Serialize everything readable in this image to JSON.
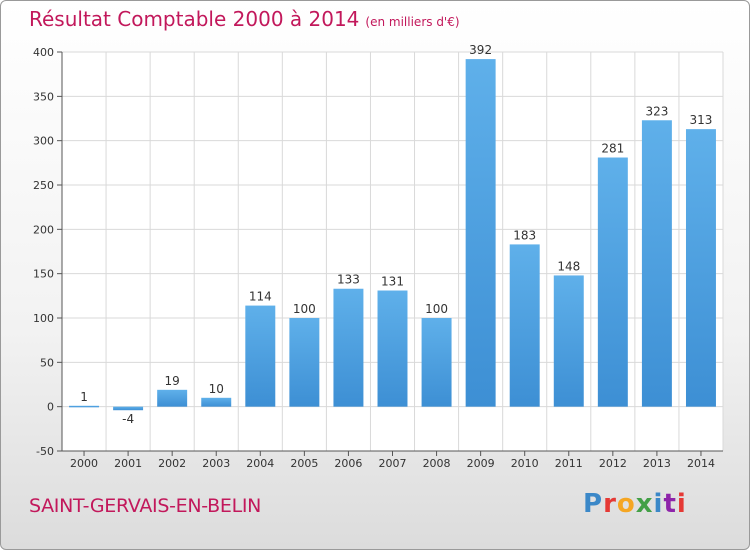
{
  "header": {
    "title": "Résultat Comptable 2000 à 2014",
    "subtitle": "(en milliers d'€)"
  },
  "footer": {
    "commune": "SAINT-GERVAIS-EN-BELIN",
    "logo_letters": [
      "P",
      "r",
      "o",
      "x",
      "i",
      "t",
      "i"
    ]
  },
  "colors": {
    "bar": "#3d8fd4",
    "bar_light": "#5fb0ea",
    "title": "#c2185b",
    "grid": "#d9d9d9"
  },
  "chart_data": {
    "type": "bar",
    "title": "Résultat Comptable 2000 à 2014",
    "subtitle": "(en milliers d'€)",
    "xlabel": "",
    "ylabel": "",
    "categories": [
      "2000",
      "2001",
      "2002",
      "2003",
      "2004",
      "2005",
      "2006",
      "2007",
      "2008",
      "2009",
      "2010",
      "2011",
      "2012",
      "2013",
      "2014"
    ],
    "values": [
      1,
      -4,
      19,
      10,
      114,
      100,
      133,
      131,
      100,
      392,
      183,
      148,
      281,
      323,
      313
    ],
    "ylim": [
      -50,
      400
    ],
    "yticks": [
      -50,
      0,
      50,
      100,
      150,
      200,
      250,
      300,
      350,
      400
    ],
    "grid": true
  }
}
